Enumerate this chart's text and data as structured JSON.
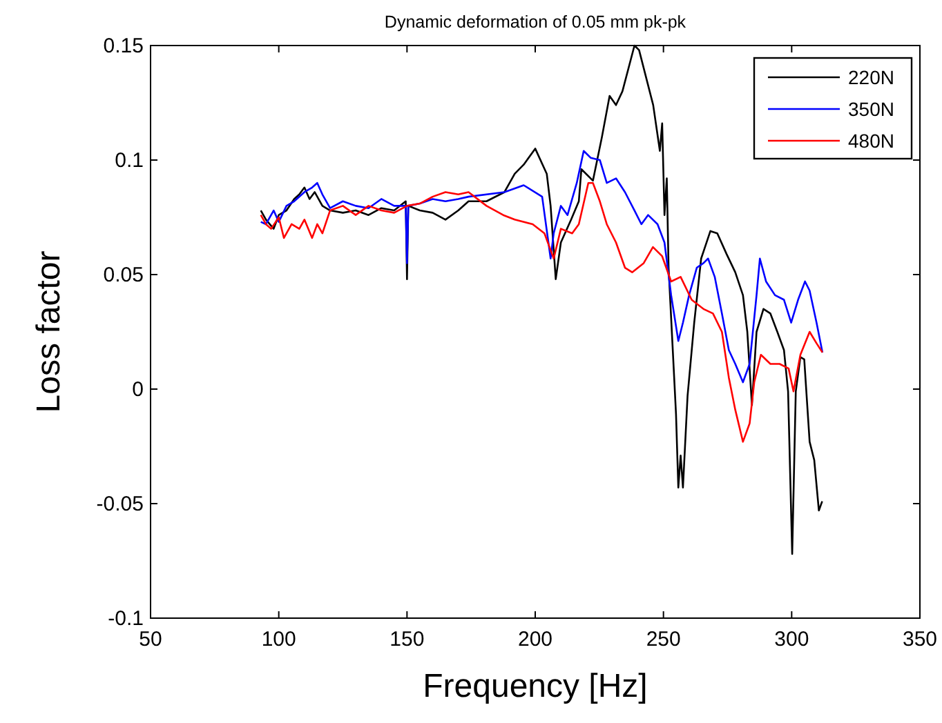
{
  "chart_data": {
    "type": "line",
    "title": "Dynamic deformation of 0.05 mm pk-pk",
    "xlabel": "Frequency [Hz]",
    "ylabel": "Loss factor",
    "xlim": [
      50,
      350
    ],
    "xticks": [
      50,
      100,
      150,
      200,
      250,
      300,
      350
    ],
    "ylim": [
      -0.1,
      0.15
    ],
    "yticks": [
      -0.1,
      -0.05,
      0,
      0.05,
      0.1,
      0.15
    ],
    "grid": false,
    "legend": "top right",
    "line_style": "solid",
    "series": [
      {
        "name": "220N",
        "color": "#000000",
        "x": [
          93,
          95,
          98,
          100,
          103,
          106,
          108,
          110,
          112,
          114,
          117,
          120,
          125,
          130,
          135,
          140,
          145,
          149.5,
          150,
          150.5,
          155,
          160,
          165,
          170,
          174,
          181,
          188,
          192,
          195.5,
          200,
          204.5,
          206,
          208,
          210,
          214,
          217,
          218,
          222.5,
          226,
          229,
          231.5,
          234,
          238.7,
          240.5,
          246,
          248.6,
          249.5,
          250.4,
          251.3,
          252,
          254,
          254.9,
          255.8,
          256.7,
          257.6,
          259.4,
          262,
          264.7,
          268.3,
          271,
          274.6,
          278,
          281,
          282.7,
          284.5,
          286.3,
          289,
          291.7,
          294.4,
          297,
          298.6,
          300.2,
          301.6,
          303.4,
          304.9,
          307,
          308.8,
          310.6,
          311.9
        ],
        "values": [
          0.078,
          0.074,
          0.07,
          0.076,
          0.078,
          0.083,
          0.085,
          0.088,
          0.083,
          0.086,
          0.08,
          0.078,
          0.077,
          0.078,
          0.076,
          0.079,
          0.078,
          0.082,
          0.048,
          0.08,
          0.078,
          0.077,
          0.074,
          0.078,
          0.082,
          0.082,
          0.086,
          0.094,
          0.098,
          0.105,
          0.094,
          0.08,
          0.048,
          0.064,
          0.074,
          0.082,
          0.096,
          0.091,
          0.11,
          0.128,
          0.124,
          0.13,
          0.15,
          0.148,
          0.124,
          0.104,
          0.116,
          0.076,
          0.092,
          0.053,
          0.009,
          -0.011,
          -0.043,
          -0.029,
          -0.043,
          -0.003,
          0.029,
          0.057,
          0.069,
          0.068,
          0.059,
          0.051,
          0.041,
          0.025,
          -0.007,
          0.025,
          0.035,
          0.033,
          0.025,
          0.017,
          -0.001,
          -0.072,
          -0.001,
          0.014,
          0.013,
          -0.023,
          -0.031,
          -0.053,
          -0.049
        ]
      },
      {
        "name": "350N",
        "color": "#0000ff",
        "x": [
          93,
          95,
          98,
          100,
          103,
          106,
          110,
          113,
          115,
          117,
          120,
          125,
          130,
          135,
          140,
          145,
          149.5,
          150,
          150.5,
          155,
          160,
          165,
          170,
          174,
          188,
          195.5,
          202.7,
          206,
          207.2,
          210,
          212.6,
          216.2,
          218.9,
          221.6,
          225.2,
          227.9,
          231.5,
          235,
          238.7,
          241.4,
          244,
          247.7,
          250.4,
          253,
          255.8,
          257.6,
          260,
          263,
          265.6,
          267.4,
          270,
          272.8,
          275.5,
          278,
          281,
          283.6,
          286.3,
          287.6,
          290,
          293.5,
          297,
          299.8,
          302.5,
          305.2,
          307,
          309.7,
          312
        ],
        "values": [
          0.073,
          0.072,
          0.078,
          0.073,
          0.08,
          0.082,
          0.086,
          0.088,
          0.09,
          0.085,
          0.079,
          0.082,
          0.08,
          0.079,
          0.083,
          0.08,
          0.08,
          0.055,
          0.08,
          0.081,
          0.083,
          0.082,
          0.083,
          0.084,
          0.086,
          0.089,
          0.084,
          0.057,
          0.068,
          0.08,
          0.076,
          0.09,
          0.104,
          0.101,
          0.1,
          0.09,
          0.092,
          0.086,
          0.078,
          0.072,
          0.076,
          0.072,
          0.064,
          0.041,
          0.021,
          0.029,
          0.041,
          0.053,
          0.055,
          0.057,
          0.049,
          0.033,
          0.017,
          0.011,
          0.003,
          0.011,
          0.041,
          0.057,
          0.047,
          0.041,
          0.039,
          0.029,
          0.039,
          0.047,
          0.043,
          0.029,
          0.016
        ]
      },
      {
        "name": "480N",
        "color": "#ff0000",
        "x": [
          93,
          95,
          97,
          100,
          102,
          105,
          108,
          110,
          113,
          115,
          117,
          120,
          125,
          130,
          135,
          140,
          145,
          150,
          155,
          160,
          165,
          170,
          174,
          181,
          187.5,
          192,
          199,
          203.6,
          207.2,
          210,
          214.4,
          217,
          220.7,
          222.5,
          225.2,
          227.9,
          231.5,
          235,
          237.8,
          242.3,
          245.9,
          249.5,
          253,
          256.7,
          261,
          265.6,
          269.3,
          272.8,
          275.5,
          278,
          281,
          283.6,
          285.4,
          288,
          291.7,
          295.3,
          298.8,
          300.7,
          303.4,
          307,
          309.7,
          312
        ],
        "values": [
          0.076,
          0.072,
          0.07,
          0.075,
          0.066,
          0.072,
          0.07,
          0.074,
          0.066,
          0.072,
          0.068,
          0.078,
          0.08,
          0.076,
          0.08,
          0.078,
          0.077,
          0.08,
          0.081,
          0.084,
          0.086,
          0.085,
          0.086,
          0.08,
          0.076,
          0.074,
          0.072,
          0.068,
          0.057,
          0.07,
          0.068,
          0.072,
          0.09,
          0.09,
          0.082,
          0.072,
          0.064,
          0.053,
          0.051,
          0.055,
          0.062,
          0.058,
          0.047,
          0.049,
          0.039,
          0.035,
          0.033,
          0.025,
          0.005,
          -0.009,
          -0.023,
          -0.015,
          0.003,
          0.015,
          0.011,
          0.011,
          0.009,
          -0.001,
          0.015,
          0.025,
          0.02,
          0.016
        ]
      }
    ]
  }
}
